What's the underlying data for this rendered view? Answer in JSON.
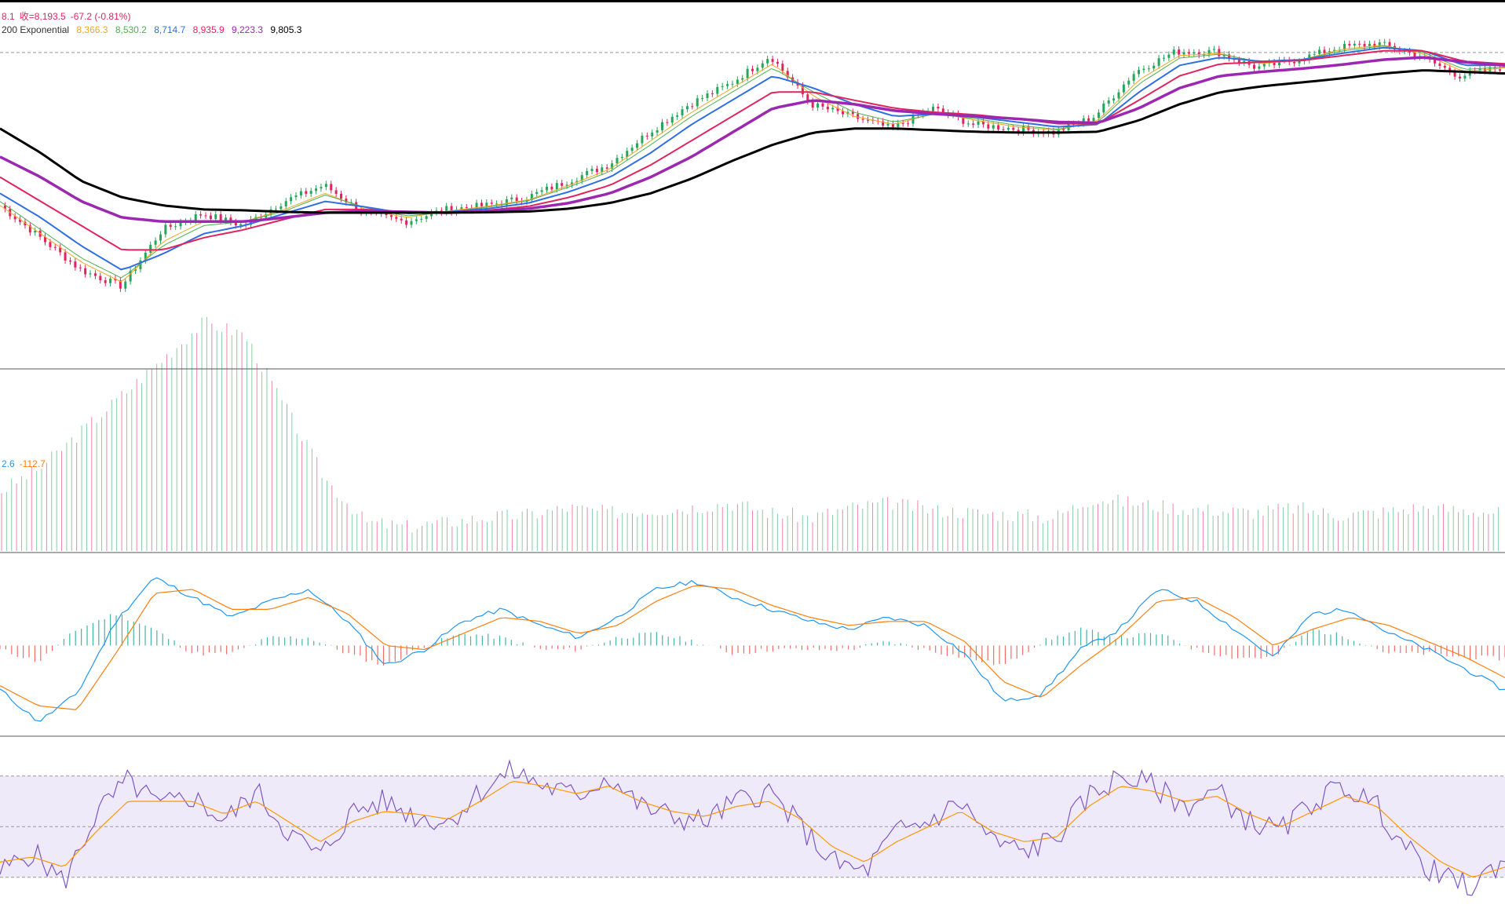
{
  "legend": {
    "price": {
      "open_fragment": "8.1",
      "close_label": "收=8,193.5",
      "change": "-67.2 (-0.81%)"
    },
    "ma": {
      "label": "200 Exponential",
      "values": [
        {
          "text": "8,366.3",
          "color": "#f5a623"
        },
        {
          "text": "8,530.2",
          "color": "#4caf50"
        },
        {
          "text": "8,714.7",
          "color": "#2f6fe0"
        },
        {
          "text": "8,935.9",
          "color": "#e0245e"
        },
        {
          "text": "9,223.3",
          "color": "#9c27b0"
        },
        {
          "text": "9,805.3",
          "color": "#000000"
        }
      ]
    },
    "macd": {
      "macd_value": "2.6",
      "signal_value": "-112.7",
      "macd_color": "#2196f3",
      "signal_color": "#ff7f0e"
    }
  },
  "colors": {
    "up": "#26a65b",
    "down": "#e0245e",
    "rsi_line": "#7e57c2",
    "rsi_band": "#efeafa",
    "divider": "#555555",
    "dash": "#999999"
  },
  "chart_data": {
    "type": "line",
    "price_panel": {
      "series": [
        {
          "type": "candlestick",
          "values": [
            9050,
            8650,
            8250,
            8050,
            8750,
            8950,
            8800,
            9100,
            9300,
            8950,
            8850,
            9000,
            9050,
            9150,
            9350,
            9550,
            9950,
            10300,
            10550,
            10900,
            10300,
            10150,
            10000,
            10250,
            10050,
            10000,
            9950,
            10150,
            10700,
            10950,
            10950,
            10750,
            10850,
            11000,
            11050,
            10900,
            10650,
            10750
          ]
        },
        {
          "name": "8,366.3",
          "color": "#f5a623",
          "values": [
            9050,
            8700,
            8350,
            8100,
            8600,
            8850,
            8850,
            9000,
            9200,
            9000,
            8900,
            8980,
            9040,
            9120,
            9300,
            9500,
            9850,
            10200,
            10500,
            10800,
            10400,
            10150,
            10050,
            10200,
            10100,
            10020,
            9980,
            10100,
            10600,
            10900,
            10930,
            10800,
            10850,
            10980,
            11030,
            10920,
            10700,
            10750
          ]
        },
        {
          "name": "8,530.2",
          "color": "#4caf50",
          "values": [
            9100,
            8750,
            8400,
            8150,
            8550,
            8800,
            8850,
            8980,
            9180,
            9020,
            8920,
            8970,
            9030,
            9110,
            9280,
            9470,
            9800,
            10150,
            10450,
            10750,
            10450,
            10200,
            10080,
            10180,
            10120,
            10040,
            9990,
            10080,
            10550,
            10870,
            10920,
            10820,
            10850,
            10960,
            11020,
            10940,
            10730,
            10760
          ]
        },
        {
          "name": "8,714.7",
          "color": "#2f6fe0",
          "values": [
            9200,
            8900,
            8550,
            8250,
            8450,
            8700,
            8800,
            8950,
            9100,
            9030,
            8950,
            8970,
            9010,
            9080,
            9220,
            9400,
            9700,
            10050,
            10350,
            10650,
            10500,
            10300,
            10150,
            10180,
            10140,
            10080,
            10020,
            10050,
            10450,
            10780,
            10880,
            10830,
            10850,
            10930,
            11000,
            10960,
            10780,
            10780
          ]
        },
        {
          "name": "8,935.9",
          "color": "#e0245e",
          "values": [
            9400,
            9100,
            8800,
            8500,
            8500,
            8650,
            8750,
            8880,
            9000,
            9000,
            8960,
            8960,
            8990,
            9040,
            9150,
            9300,
            9550,
            9850,
            10150,
            10450,
            10450,
            10350,
            10250,
            10200,
            10170,
            10120,
            10060,
            10060,
            10350,
            10650,
            10800,
            10820,
            10840,
            10900,
            10960,
            10960,
            10830,
            10800
          ]
        },
        {
          "name": "9,223.3",
          "color": "#9c27b0",
          "values": [
            9650,
            9400,
            9100,
            8900,
            8850,
            8850,
            8850,
            8900,
            8960,
            8980,
            8970,
            8960,
            8980,
            9010,
            9080,
            9200,
            9400,
            9650,
            9950,
            10250,
            10350,
            10300,
            10220,
            10180,
            10150,
            10120,
            10080,
            10070,
            10250,
            10500,
            10650,
            10700,
            10740,
            10790,
            10850,
            10880,
            10820,
            10780
          ]
        },
        {
          "name": "9,805.3",
          "color": "#000000",
          "values": [
            10000,
            9700,
            9350,
            9150,
            9050,
            9000,
            8990,
            8970,
            8960,
            8960,
            8960,
            8960,
            8965,
            8975,
            9010,
            9080,
            9200,
            9380,
            9600,
            9800,
            9950,
            10000,
            10000,
            9980,
            9960,
            9950,
            9950,
            9960,
            10100,
            10300,
            10450,
            10520,
            10570,
            10620,
            10680,
            10720,
            10700,
            10680
          ]
        }
      ],
      "reference_line": 10940
    },
    "volume_panel": {
      "values": [
        25,
        35,
        50,
        65,
        80,
        95,
        90,
        60,
        30,
        12,
        10,
        12,
        14,
        15,
        18,
        16,
        17,
        18,
        20,
        16,
        14,
        18,
        20,
        17,
        16,
        15,
        14,
        22,
        20,
        18,
        17,
        16,
        18,
        15,
        16,
        18,
        17,
        16
      ]
    },
    "macd_panel": {
      "macd": [
        -110,
        -190,
        -120,
        60,
        170,
        120,
        70,
        110,
        140,
        60,
        -50,
        -10,
        60,
        90,
        50,
        20,
        70,
        140,
        160,
        120,
        90,
        60,
        40,
        70,
        50,
        -20,
        -140,
        -120,
        -10,
        40,
        140,
        110,
        40,
        -30,
        80,
        90,
        30,
        -10,
        -60,
        -112
      ],
      "signal": [
        -100,
        -150,
        -160,
        -20,
        130,
        140,
        90,
        90,
        120,
        80,
        0,
        -10,
        30,
        70,
        60,
        30,
        50,
        110,
        150,
        140,
        100,
        70,
        50,
        60,
        60,
        10,
        -90,
        -130,
        -50,
        20,
        110,
        120,
        70,
        0,
        40,
        70,
        50,
        10,
        -30,
        -80
      ],
      "histogram_scale": "signed"
    },
    "rsi_panel": {
      "rsi": [
        32,
        40,
        28,
        55,
        68,
        58,
        62,
        52,
        64,
        48,
        38,
        56,
        60,
        54,
        52,
        64,
        72,
        66,
        62,
        70,
        58,
        54,
        52,
        60,
        64,
        50,
        36,
        32,
        48,
        52,
        60,
        44,
        40,
        46,
        62,
        70,
        66,
        58,
        64,
        52,
        48,
        60,
        66,
        58,
        40,
        30,
        26,
        38
      ],
      "rsi_ma": [
        36,
        38,
        34,
        48,
        60,
        60,
        60,
        55,
        60,
        52,
        44,
        52,
        56,
        55,
        53,
        60,
        68,
        66,
        63,
        66,
        60,
        56,
        54,
        58,
        60,
        53,
        42,
        36,
        44,
        50,
        56,
        48,
        44,
        46,
        58,
        66,
        64,
        60,
        62,
        55,
        50,
        56,
        62,
        58,
        46,
        36,
        30,
        34
      ],
      "levels": [
        70,
        50,
        30
      ]
    }
  }
}
